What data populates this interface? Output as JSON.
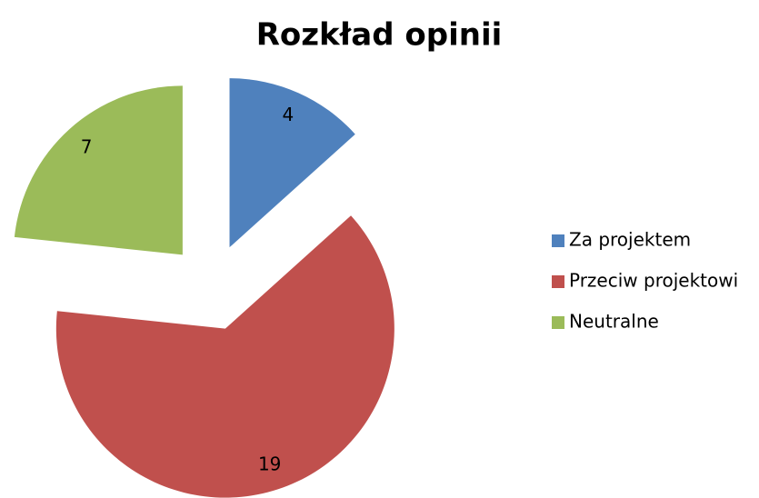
{
  "chart_data": {
    "type": "pie",
    "title": "Rozkład opinii",
    "categories": [
      "Za projektem",
      "Przeciw projektowi",
      "Neutralne"
    ],
    "values": [
      4,
      19,
      7
    ],
    "colors": [
      "#4f81bd",
      "#c0504d",
      "#9bbb59"
    ],
    "legend": "right"
  }
}
